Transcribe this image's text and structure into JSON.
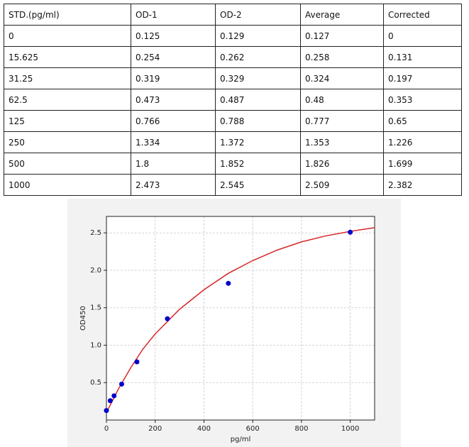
{
  "table": {
    "header": [
      "STD.(pg/ml)",
      "OD-1",
      "OD-2",
      "Average",
      "Corrected"
    ],
    "rows": [
      [
        "0",
        "0.125",
        "0.129",
        "0.127",
        "0"
      ],
      [
        "15.625",
        "0.254",
        "0.262",
        "0.258",
        "0.131"
      ],
      [
        "31.25",
        "0.319",
        "0.329",
        "0.324",
        "0.197"
      ],
      [
        "62.5",
        "0.473",
        "0.487",
        "0.48",
        "0.353"
      ],
      [
        "125",
        "0.766",
        "0.788",
        "0.777",
        "0.65"
      ],
      [
        "250",
        "1.334",
        "1.372",
        "1.353",
        "1.226"
      ],
      [
        "500",
        "1.8",
        "1.852",
        "1.826",
        "1.699"
      ],
      [
        "1000",
        "2.473",
        "2.545",
        "2.509",
        "2.382"
      ]
    ]
  },
  "chart_data": {
    "type": "scatter",
    "xlabel": "pg/ml",
    "ylabel": "OD450",
    "x": [
      0,
      15.625,
      31.25,
      62.5,
      125,
      250,
      500,
      1000
    ],
    "values": [
      0.127,
      0.258,
      0.324,
      0.48,
      0.777,
      1.353,
      1.826,
      2.509
    ],
    "color": "#0000cc",
    "fit": {
      "color": "#d62728",
      "x": [
        0,
        50,
        100,
        150,
        200,
        300,
        400,
        500,
        600,
        700,
        800,
        900,
        1000,
        1100
      ],
      "values": [
        0.1,
        0.42,
        0.7,
        0.95,
        1.15,
        1.48,
        1.74,
        1.96,
        2.13,
        2.27,
        2.38,
        2.46,
        2.52,
        2.57
      ]
    },
    "xlim": [
      0,
      1100
    ],
    "ylim": [
      0,
      2.72
    ],
    "xticks": [
      0,
      200,
      400,
      600,
      800,
      1000
    ],
    "yticks": [
      0.5,
      {
        "value": 1,
        "label": "1.0"
      },
      1.5,
      {
        "value": 2,
        "label": "2.0"
      },
      2.5
    ],
    "grid": true
  }
}
